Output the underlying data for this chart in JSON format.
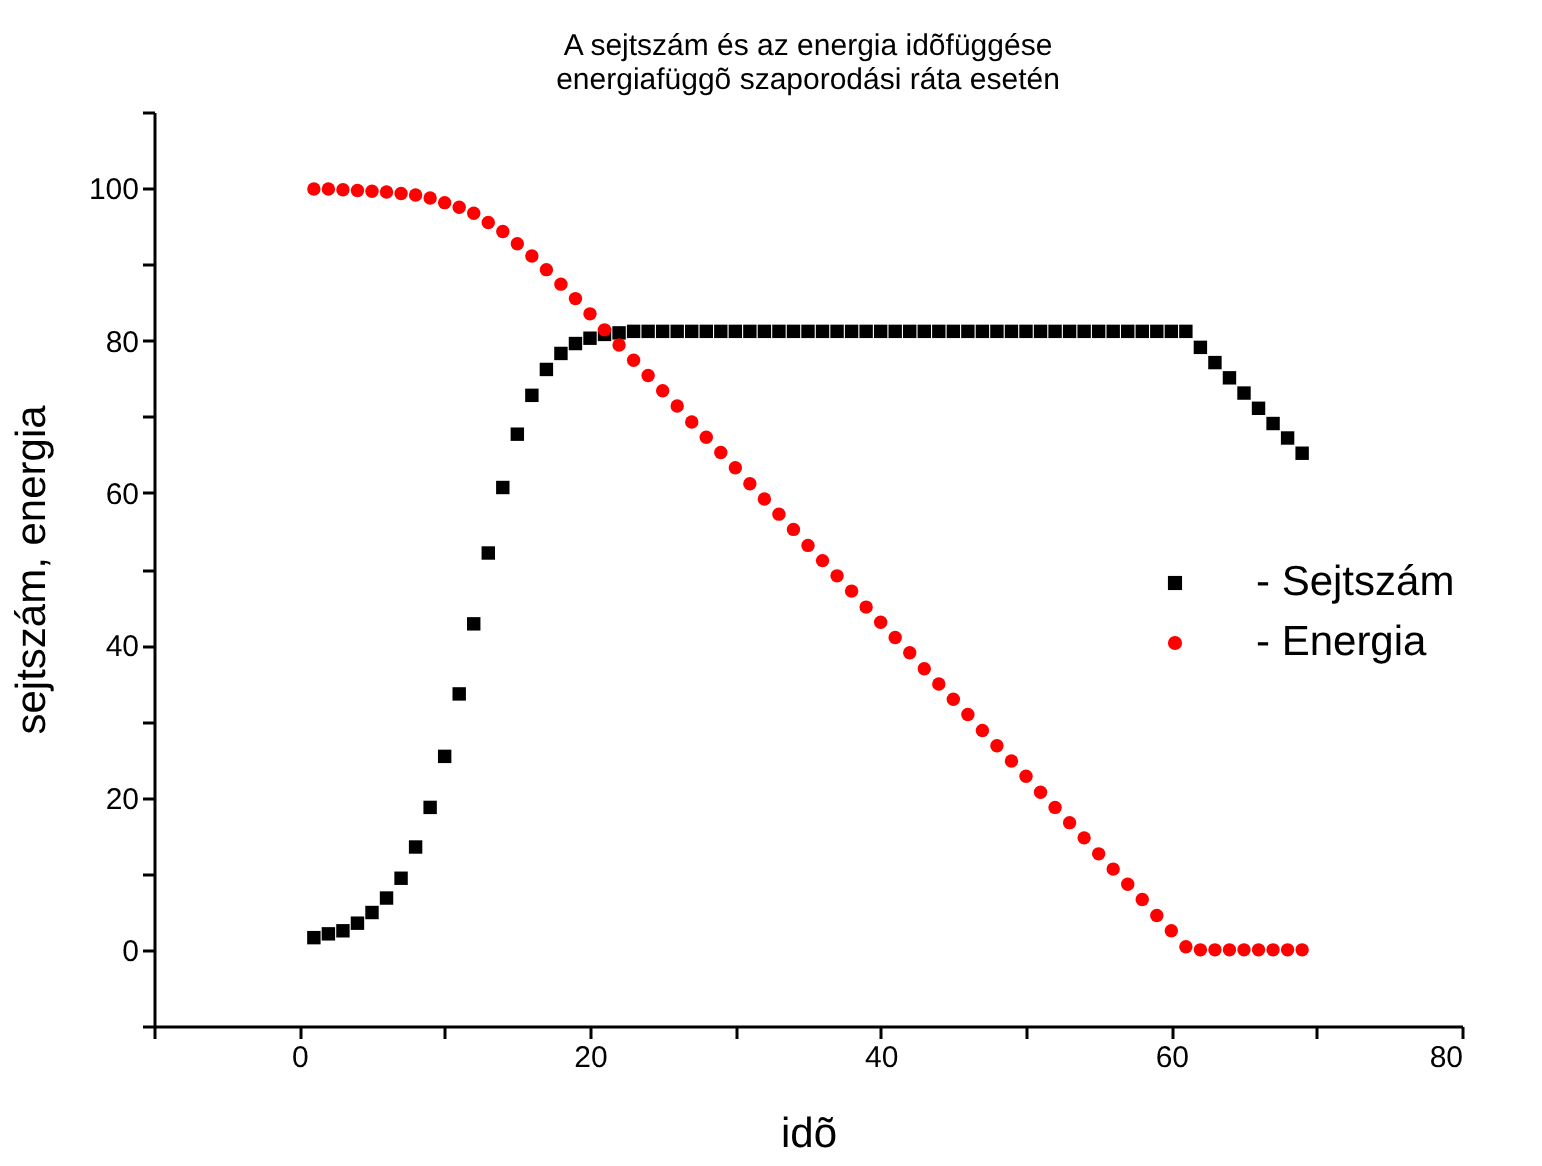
{
  "chart_data": {
    "type": "scatter",
    "title": "A sejtszám és az energia idõfüggése\nenergiafüggõ szaporodási ráta esetén",
    "xlabel": "idõ",
    "ylabel": "sejtszám, energia",
    "x": [
      1,
      2,
      3,
      4,
      5,
      6,
      7,
      8,
      9,
      10,
      11,
      12,
      13,
      14,
      15,
      16,
      17,
      18,
      19,
      20,
      21,
      22,
      23,
      24,
      25,
      26,
      27,
      28,
      29,
      30,
      31,
      32,
      33,
      34,
      35,
      36,
      37,
      38,
      39,
      40,
      41,
      42,
      43,
      44,
      45,
      46,
      47,
      48,
      49,
      50,
      51,
      52,
      53,
      54,
      55,
      56,
      57,
      58,
      59,
      60,
      61,
      62,
      63,
      64,
      65,
      66,
      67,
      68,
      69
    ],
    "series": [
      {
        "name": "- Sejtszám",
        "color": "#000000",
        "marker": "square",
        "values": [
          1.6,
          2.1,
          2.5,
          3.5,
          4.9,
          6.8,
          9.4,
          13.5,
          18.7,
          25.4,
          33.6,
          42.8,
          52.1,
          60.7,
          67.7,
          72.8,
          76.2,
          78.3,
          79.6,
          80.3,
          80.8,
          81.0,
          81.2,
          81.2,
          81.2,
          81.2,
          81.2,
          81.2,
          81.2,
          81.2,
          81.2,
          81.2,
          81.2,
          81.2,
          81.2,
          81.2,
          81.2,
          81.2,
          81.2,
          81.2,
          81.2,
          81.2,
          81.2,
          81.2,
          81.2,
          81.2,
          81.2,
          81.2,
          81.2,
          81.2,
          81.2,
          81.2,
          81.2,
          81.2,
          81.2,
          81.2,
          81.2,
          81.2,
          81.2,
          81.2,
          81.2,
          79.1,
          77.1,
          75.1,
          73.1,
          71.1,
          69.1,
          67.2,
          65.2
        ]
      },
      {
        "name": "- Energia",
        "color": "#ff0000",
        "marker": "circle",
        "values": [
          99.9,
          99.9,
          99.8,
          99.7,
          99.6,
          99.5,
          99.3,
          99.1,
          98.7,
          98.1,
          97.5,
          96.7,
          95.5,
          94.3,
          92.7,
          91.1,
          89.3,
          87.4,
          85.5,
          83.5,
          81.4,
          79.4,
          77.4,
          75.4,
          73.4,
          71.4,
          69.3,
          67.3,
          65.3,
          63.3,
          61.2,
          59.2,
          57.2,
          55.2,
          53.1,
          51.1,
          49.1,
          47.1,
          45.0,
          43.0,
          41.0,
          39.0,
          36.9,
          34.9,
          32.9,
          30.9,
          28.8,
          26.8,
          24.8,
          22.8,
          20.7,
          18.7,
          16.7,
          14.7,
          12.6,
          10.6,
          8.6,
          6.6,
          4.5,
          2.5,
          0.4,
          0,
          0,
          0,
          0,
          0,
          0,
          0,
          0
        ]
      }
    ],
    "xlim": [
      -10,
      80
    ],
    "xticks": [
      {
        "value": -10,
        "label": null
      },
      0,
      {
        "value": 10,
        "label": null
      },
      20,
      {
        "value": 30,
        "label": null
      },
      40,
      {
        "value": 50,
        "label": null
      },
      60,
      {
        "value": 70,
        "label": null
      },
      80
    ],
    "ylim": [
      -10,
      110
    ],
    "yticks": [
      {
        "value": -10,
        "label": null
      },
      0,
      {
        "value": 10,
        "label": null
      },
      20,
      {
        "value": 30,
        "label": null
      },
      40,
      {
        "value": 50,
        "label": null
      },
      60,
      {
        "value": 70,
        "label": null
      },
      80,
      {
        "value": 90,
        "label": null
      },
      100,
      {
        "value": 110,
        "label": null
      }
    ],
    "grid": false,
    "legend": "right"
  }
}
